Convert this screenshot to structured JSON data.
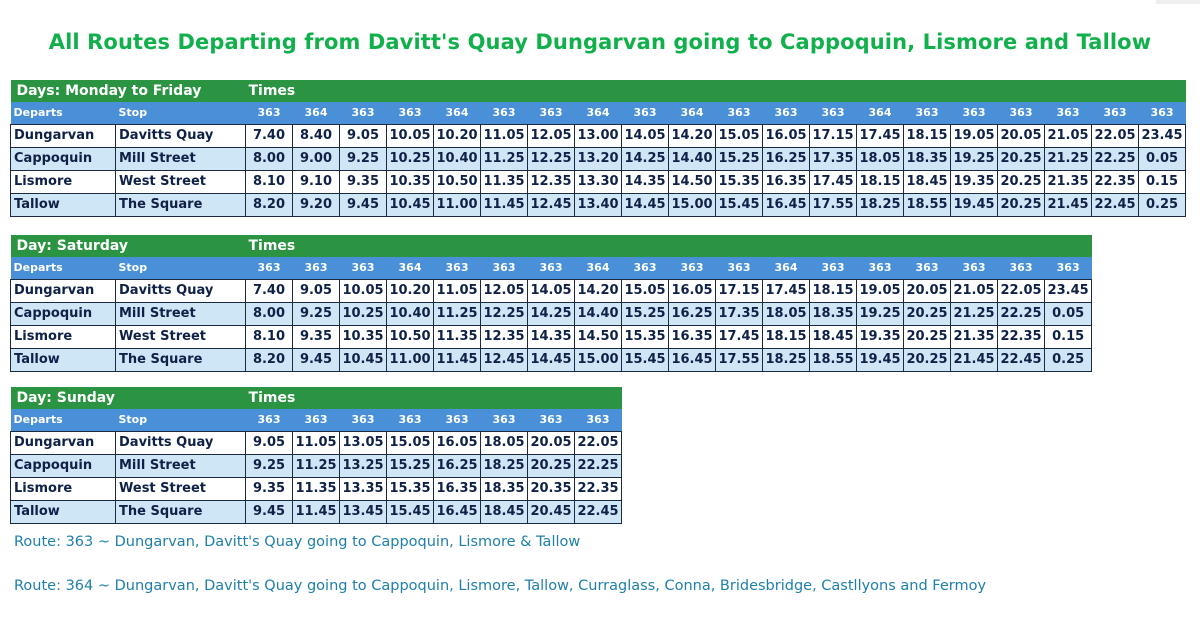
{
  "title": "All Routes Departing from Davitt's Quay Dungarvan going to Cappoquin, Lismore and Tallow",
  "colors": {
    "header_green": "#2b9443",
    "subheader_blue": "#4a90d9",
    "row_alt": "#cfe6f6",
    "title_green": "#12b04c",
    "note_blue": "#1f7fab"
  },
  "tables": [
    {
      "day_label": "Days: Monday to Friday",
      "times_label": "Times",
      "departs_label": "Departs",
      "stop_label": "Stop",
      "routes": [
        "363",
        "364",
        "363",
        "363",
        "364",
        "363",
        "363",
        "364",
        "363",
        "364",
        "363",
        "363",
        "363",
        "364",
        "363",
        "363",
        "363",
        "363",
        "363",
        "363"
      ],
      "rows": [
        {
          "town": "Dungarvan",
          "stop": "Davitts Quay",
          "times": [
            "7.40",
            "8.40",
            "9.05",
            "10.05",
            "10.20",
            "11.05",
            "12.05",
            "13.00",
            "14.05",
            "14.20",
            "15.05",
            "16.05",
            "17.15",
            "17.45",
            "18.15",
            "19.05",
            "20.05",
            "21.05",
            "22.05",
            "23.45"
          ]
        },
        {
          "town": "Cappoquin",
          "stop": "Mill Street",
          "times": [
            "8.00",
            "9.00",
            "9.25",
            "10.25",
            "10.40",
            "11.25",
            "12.25",
            "13.20",
            "14.25",
            "14.40",
            "15.25",
            "16.25",
            "17.35",
            "18.05",
            "18.35",
            "19.25",
            "20.25",
            "21.25",
            "22.25",
            "0.05"
          ]
        },
        {
          "town": "Lismore",
          "stop": "West Street",
          "times": [
            "8.10",
            "9.10",
            "9.35",
            "10.35",
            "10.50",
            "11.35",
            "12.35",
            "13.30",
            "14.35",
            "14.50",
            "15.35",
            "16.35",
            "17.45",
            "18.15",
            "18.45",
            "19.35",
            "20.25",
            "21.35",
            "22.35",
            "0.15"
          ]
        },
        {
          "town": "Tallow",
          "stop": "The Square",
          "times": [
            "8.20",
            "9.20",
            "9.45",
            "10.45",
            "11.00",
            "11.45",
            "12.45",
            "13.40",
            "14.45",
            "15.00",
            "15.45",
            "16.45",
            "17.55",
            "18.25",
            "18.55",
            "19.45",
            "20.25",
            "21.45",
            "22.45",
            "0.25"
          ]
        }
      ]
    },
    {
      "day_label": "Day: Saturday",
      "times_label": "Times",
      "departs_label": "Departs",
      "stop_label": "Stop",
      "routes": [
        "363",
        "363",
        "363",
        "364",
        "363",
        "363",
        "363",
        "364",
        "363",
        "363",
        "363",
        "364",
        "363",
        "363",
        "363",
        "363",
        "363",
        "363"
      ],
      "rows": [
        {
          "town": "Dungarvan",
          "stop": "Davitts Quay",
          "times": [
            "7.40",
            "9.05",
            "10.05",
            "10.20",
            "11.05",
            "12.05",
            "14.05",
            "14.20",
            "15.05",
            "16.05",
            "17.15",
            "17.45",
            "18.15",
            "19.05",
            "20.05",
            "21.05",
            "22.05",
            "23.45"
          ]
        },
        {
          "town": "Cappoquin",
          "stop": "Mill Street",
          "times": [
            "8.00",
            "9.25",
            "10.25",
            "10.40",
            "11.25",
            "12.25",
            "14.25",
            "14.40",
            "15.25",
            "16.25",
            "17.35",
            "18.05",
            "18.35",
            "19.25",
            "20.25",
            "21.25",
            "22.25",
            "0.05"
          ]
        },
        {
          "town": "Lismore",
          "stop": "West Street",
          "times": [
            "8.10",
            "9.35",
            "10.35",
            "10.50",
            "11.35",
            "12.35",
            "14.35",
            "14.50",
            "15.35",
            "16.35",
            "17.45",
            "18.15",
            "18.45",
            "19.35",
            "20.25",
            "21.35",
            "22.35",
            "0.15"
          ]
        },
        {
          "town": "Tallow",
          "stop": "The Square",
          "times": [
            "8.20",
            "9.45",
            "10.45",
            "11.00",
            "11.45",
            "12.45",
            "14.45",
            "15.00",
            "15.45",
            "16.45",
            "17.55",
            "18.25",
            "18.55",
            "19.45",
            "20.25",
            "21.45",
            "22.45",
            "0.25"
          ]
        }
      ]
    },
    {
      "day_label": "Day: Sunday",
      "times_label": "Times",
      "departs_label": "Departs",
      "stop_label": "Stop",
      "routes": [
        "363",
        "363",
        "363",
        "363",
        "363",
        "363",
        "363",
        "363"
      ],
      "rows": [
        {
          "town": "Dungarvan",
          "stop": "Davitts Quay",
          "times": [
            "9.05",
            "11.05",
            "13.05",
            "15.05",
            "16.05",
            "18.05",
            "20.05",
            "22.05"
          ]
        },
        {
          "town": "Cappoquin",
          "stop": "Mill Street",
          "times": [
            "9.25",
            "11.25",
            "13.25",
            "15.25",
            "16.25",
            "18.25",
            "20.25",
            "22.25"
          ]
        },
        {
          "town": "Lismore",
          "stop": "West Street",
          "times": [
            "9.35",
            "11.35",
            "13.35",
            "15.35",
            "16.35",
            "18.35",
            "20.35",
            "22.35"
          ]
        },
        {
          "town": "Tallow",
          "stop": "The Square",
          "times": [
            "9.45",
            "11.45",
            "13.45",
            "15.45",
            "16.45",
            "18.45",
            "20.45",
            "22.45"
          ]
        }
      ]
    }
  ],
  "notes": [
    "Route: 363 ~ Dungarvan, Davitt's Quay going to Cappoquin, Lismore & Tallow",
    "Route: 364 ~ Dungarvan, Davitt's Quay going to Cappoquin, Lismore, Tallow, Curraglass, Conna, Bridesbridge, Castllyons and Fermoy"
  ]
}
